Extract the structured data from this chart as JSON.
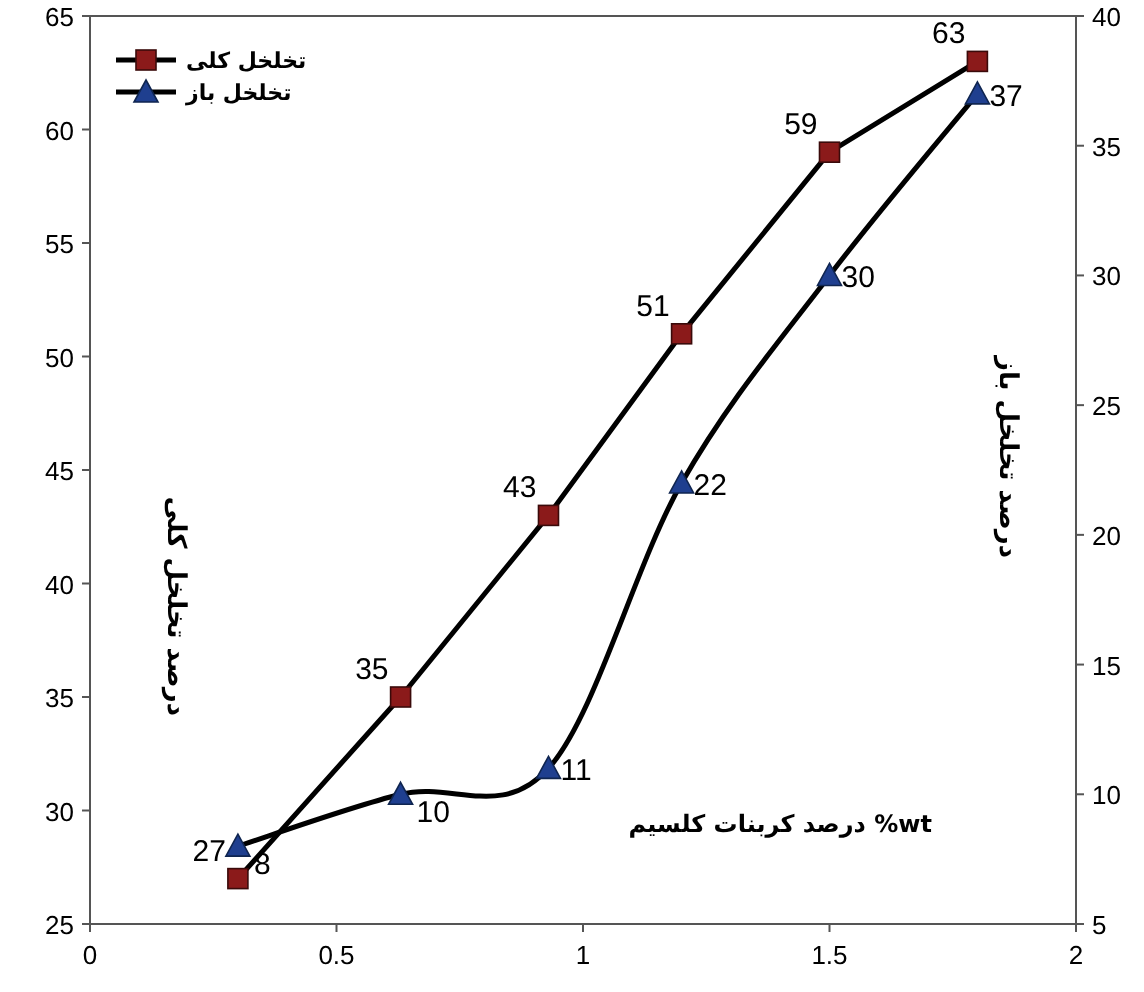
{
  "chart_data": {
    "type": "line",
    "xlabel": "درصد کربنات کلسیم %wt",
    "ylabel": "درصد تخلخل کلی",
    "y2label": "درصد تخلخل باز",
    "xlim": [
      0,
      2
    ],
    "xticks": [
      0,
      0.5,
      1,
      1.5,
      2
    ],
    "ylim": [
      25,
      65
    ],
    "yticks": [
      25,
      30,
      35,
      40,
      45,
      50,
      55,
      60,
      65
    ],
    "y2lim": [
      5,
      40
    ],
    "y2ticks": [
      5,
      10,
      15,
      20,
      25,
      30,
      35,
      40
    ],
    "legend": "top left",
    "data_labels": true,
    "grid": false,
    "series": [
      {
        "name": "تخلخل کلی",
        "color": "#8b1a1a",
        "marker": "square",
        "x": [
          0.3,
          0.63,
          0.93,
          1.2,
          1.5,
          1.8
        ],
        "values": [
          27,
          35,
          43,
          51,
          59,
          63
        ]
      },
      {
        "name": "تخلخل باز",
        "color": "#1f3f8f",
        "marker": "triangle",
        "axis": "y2",
        "x": [
          0.3,
          0.63,
          0.93,
          1.2,
          1.5,
          1.8
        ],
        "values": [
          8,
          10,
          11,
          22,
          30,
          37
        ]
      }
    ]
  }
}
